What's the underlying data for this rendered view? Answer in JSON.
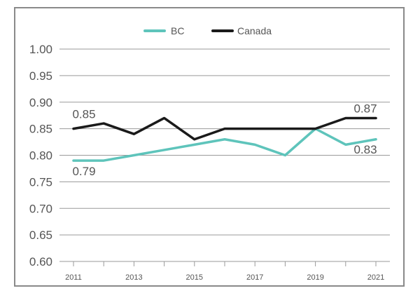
{
  "chart_data": {
    "type": "line",
    "x": [
      2011,
      2012,
      2013,
      2014,
      2015,
      2016,
      2017,
      2018,
      2019,
      2020,
      2021
    ],
    "x_tick_labels": [
      "2011",
      "2013",
      "2015",
      "2017",
      "2019",
      "2021"
    ],
    "y_tick_labels": [
      "1.00",
      "0.95",
      "0.90",
      "0.85",
      "0.80",
      "0.75",
      "0.70",
      "0.65",
      "0.60"
    ],
    "ylim": [
      0.6,
      1.0
    ],
    "grid": true,
    "legend_position": "top-center",
    "series": [
      {
        "name": "BC",
        "color": "#5ec4bb",
        "values": [
          0.79,
          0.79,
          0.8,
          0.81,
          0.82,
          0.83,
          0.82,
          0.8,
          0.85,
          0.82,
          0.83
        ]
      },
      {
        "name": "Canada",
        "color": "#1a1a1a",
        "values": [
          0.85,
          0.86,
          0.84,
          0.87,
          0.83,
          0.85,
          0.85,
          0.85,
          0.85,
          0.87,
          0.87
        ]
      }
    ],
    "annotations": [
      {
        "text": "0.85",
        "series": 1,
        "index": 0
      },
      {
        "text": "0.79",
        "series": 0,
        "index": 0
      },
      {
        "text": "0.87",
        "series": 1,
        "index": 10
      },
      {
        "text": "0.83",
        "series": 0,
        "index": 10
      }
    ]
  }
}
